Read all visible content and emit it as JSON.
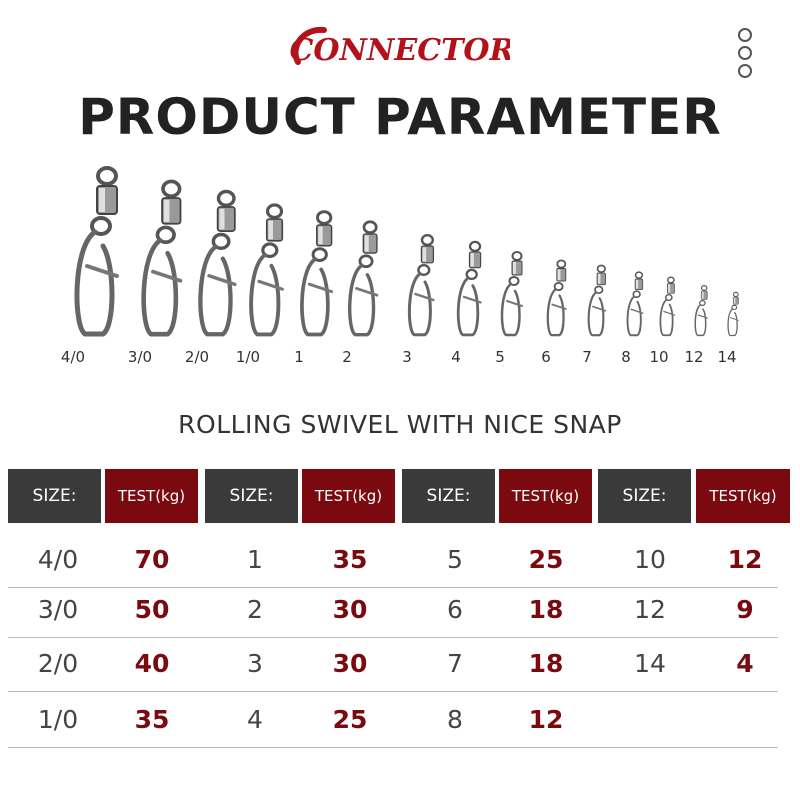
{
  "brand": {
    "name": "CONNECTOR",
    "color": "#b3121b"
  },
  "title": "PRODUCT PARAMETER",
  "sizes_under_image": [
    "4/0",
    "3/0",
    "2/0",
    "1/0",
    "1",
    "2",
    "3",
    "4",
    "5",
    "6",
    "7",
    "8",
    "10",
    "12",
    "14"
  ],
  "subtitle": "ROLLING SWIVEL WITH NICE SNAP",
  "table": {
    "header_size": "SIZE:",
    "header_test": "TEST(kg)",
    "columns": [
      {
        "rows": [
          {
            "size": "4/0",
            "test": "70"
          },
          {
            "size": "3/0",
            "test": "50"
          },
          {
            "size": "2/0",
            "test": "40"
          },
          {
            "size": "1/0",
            "test": "35"
          }
        ]
      },
      {
        "rows": [
          {
            "size": "1",
            "test": "35"
          },
          {
            "size": "2",
            "test": "30"
          },
          {
            "size": "3",
            "test": "30"
          },
          {
            "size": "4",
            "test": "25"
          }
        ]
      },
      {
        "rows": [
          {
            "size": "5",
            "test": "25"
          },
          {
            "size": "6",
            "test": "18"
          },
          {
            "size": "7",
            "test": "18"
          },
          {
            "size": "8",
            "test": "12"
          }
        ]
      },
      {
        "rows": [
          {
            "size": "10",
            "test": "12"
          },
          {
            "size": "12",
            "test": "9"
          },
          {
            "size": "14",
            "test": "4"
          }
        ]
      }
    ]
  },
  "colors": {
    "header_dark": "#3a3a3a",
    "header_red": "#7a0a10",
    "value_red": "#7a0a10"
  }
}
